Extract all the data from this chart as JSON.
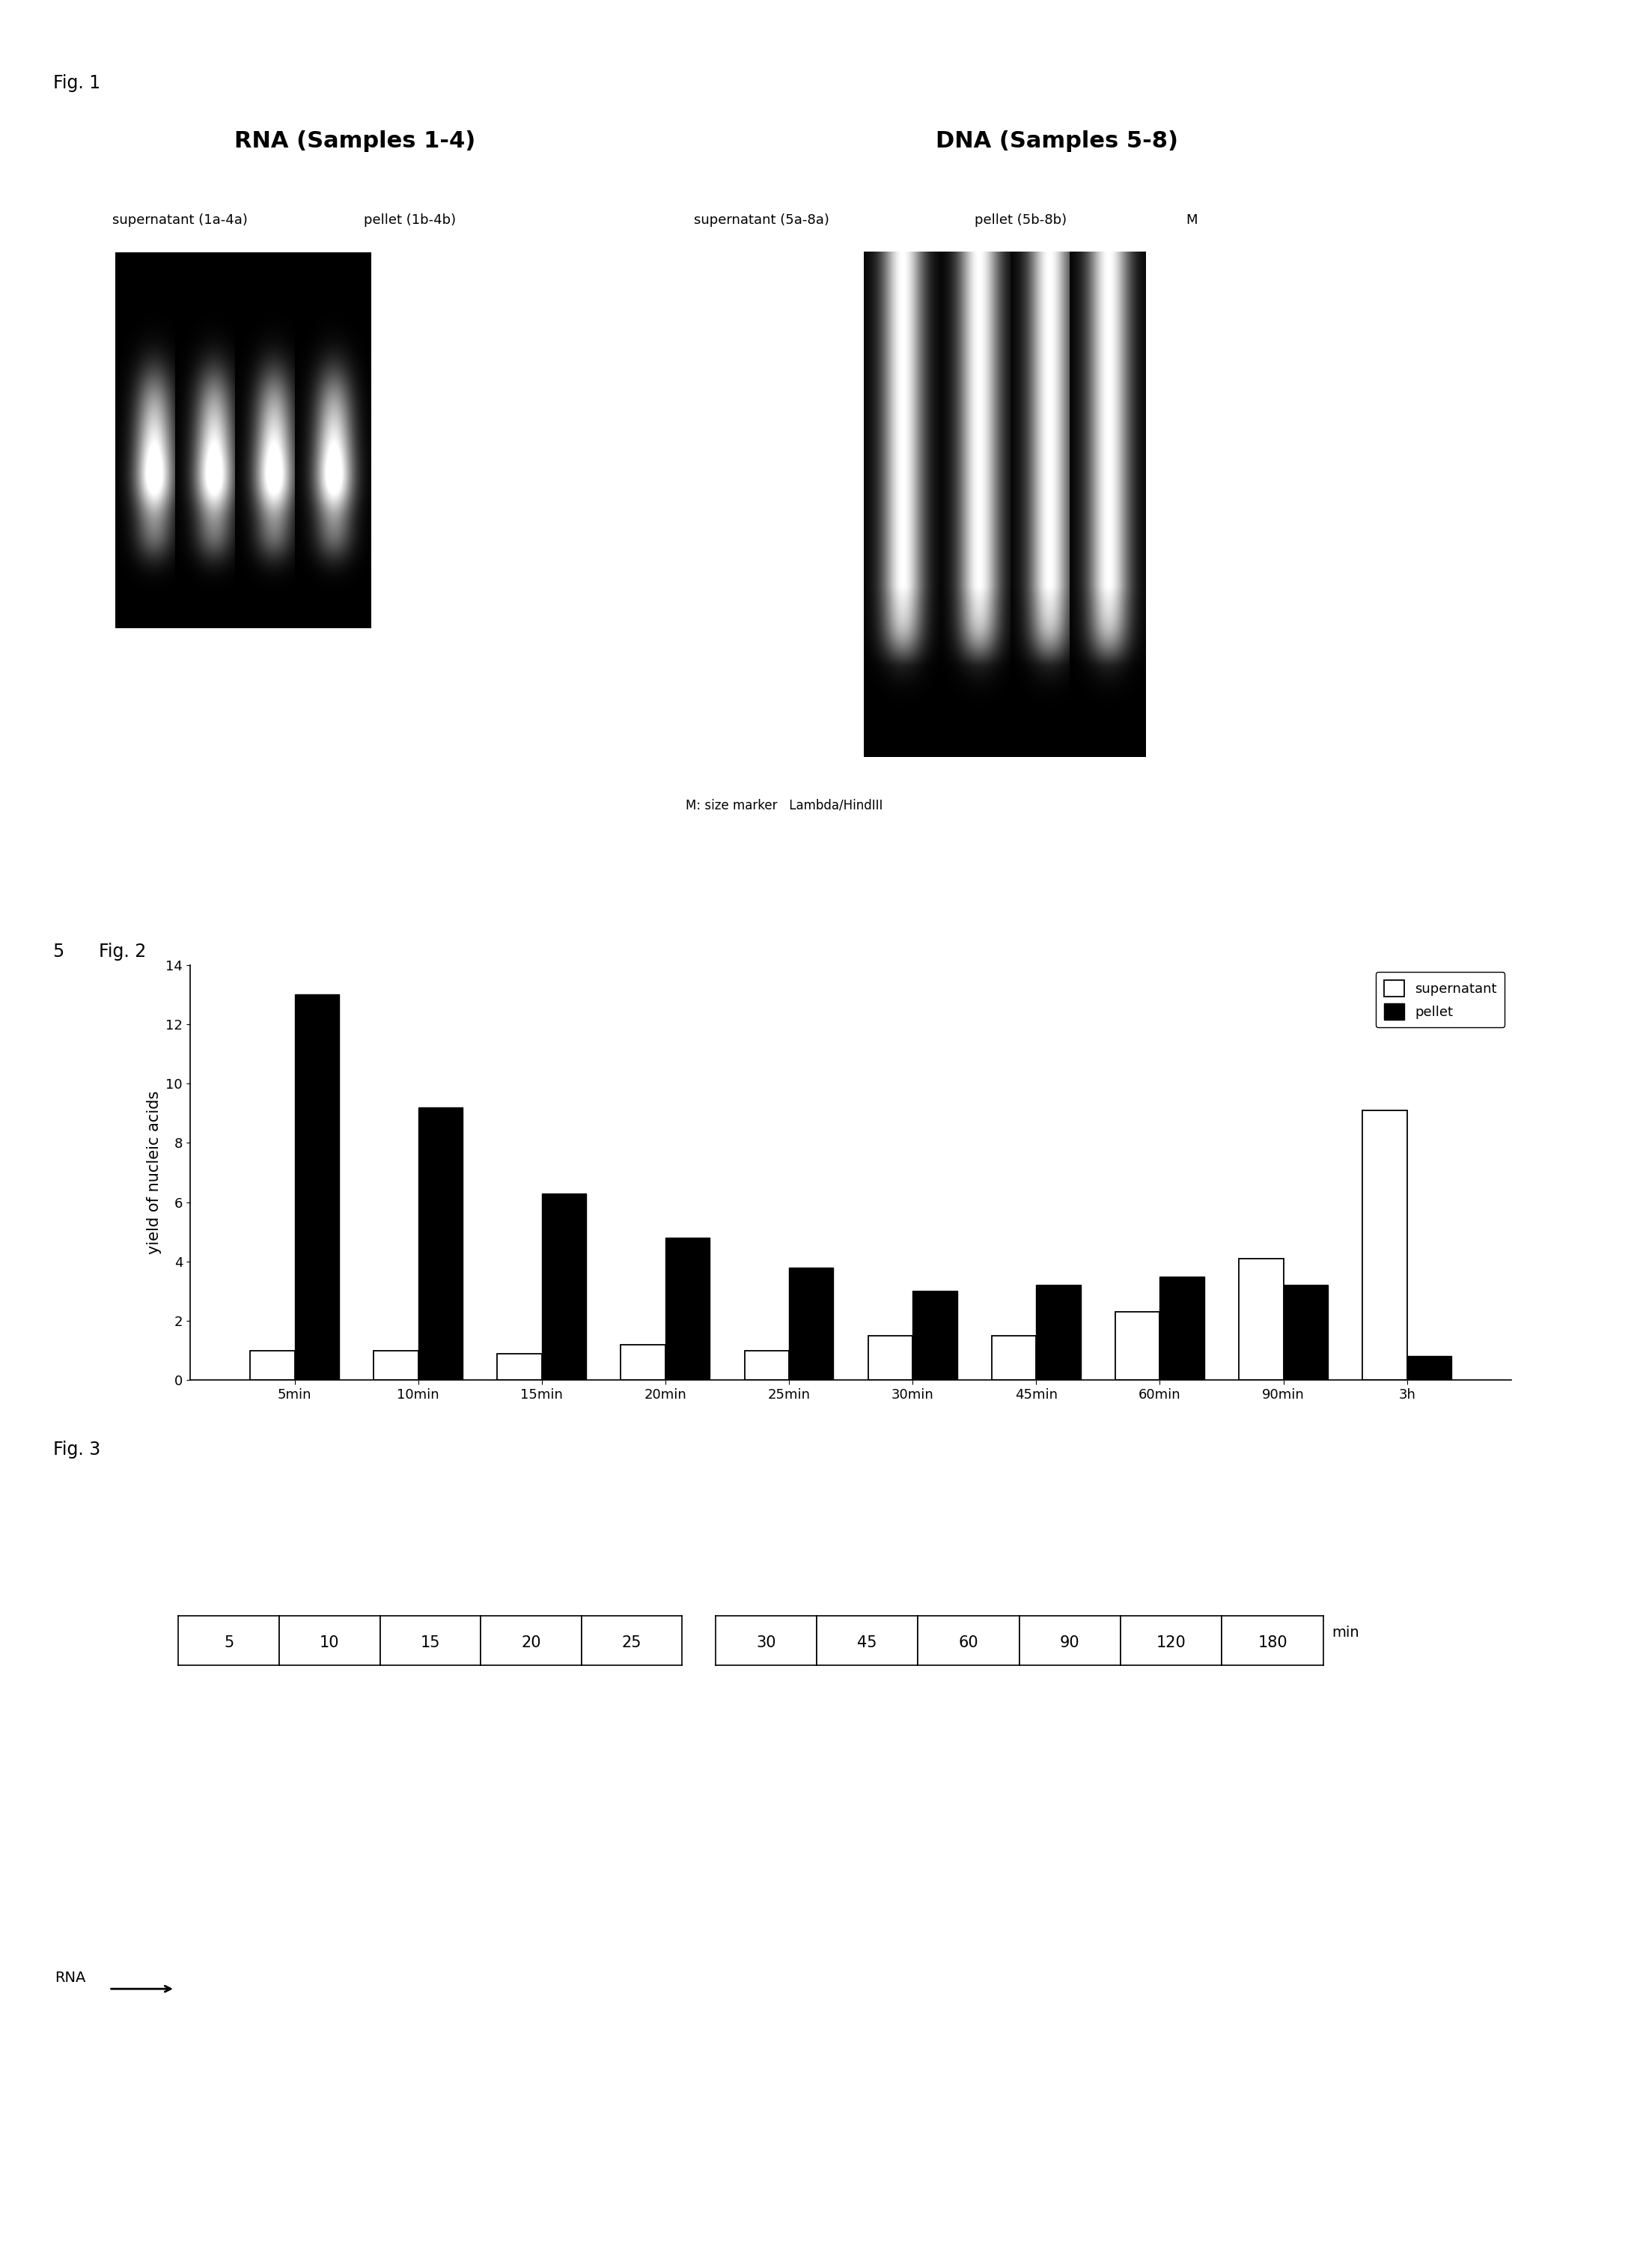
{
  "fig1_label": "Fig. 1",
  "fig2_label_num": "5",
  "fig2_label_text": "Fig. 2",
  "fig3_label": "Fig. 3",
  "rna_title": "RNA (Samples 1-4)",
  "dna_title": "DNA (Samples 5-8)",
  "rna_sup_label": "supernatant (1a-4a)",
  "rna_pel_label": "pellet (1b-4b)",
  "dna_sup_label": "supernatant (5a-8a)",
  "dna_pel_label": "pellet (5b-8b)",
  "dna_m_label": "M",
  "marker_caption": "M: size marker   Lambda/HindIII",
  "bar_categories": [
    "5min",
    "10min",
    "15min",
    "20min",
    "25min",
    "30min",
    "45min",
    "60min",
    "90min",
    "3h"
  ],
  "supernatant_vals": [
    1.0,
    1.0,
    0.9,
    1.2,
    1.0,
    1.5,
    1.5,
    2.3,
    4.1,
    9.1
  ],
  "pellet_vals": [
    13.0,
    9.2,
    6.3,
    4.8,
    3.8,
    3.0,
    3.2,
    3.5,
    3.2,
    0.8
  ],
  "ylabel": "yield of nucleic acids",
  "ylim": [
    0,
    14
  ],
  "yticks": [
    0,
    2,
    4,
    6,
    8,
    10,
    12,
    14
  ],
  "legend_supernatant": "supernatant",
  "legend_pellet": "pellet",
  "fig3_time_labels_left": [
    "5",
    "10",
    "15",
    "20",
    "25"
  ],
  "fig3_time_labels_right": [
    "30",
    "45",
    "60",
    "90",
    "120",
    "180"
  ],
  "fig3_min_label": "min",
  "fig3_rna_label": "RNA"
}
